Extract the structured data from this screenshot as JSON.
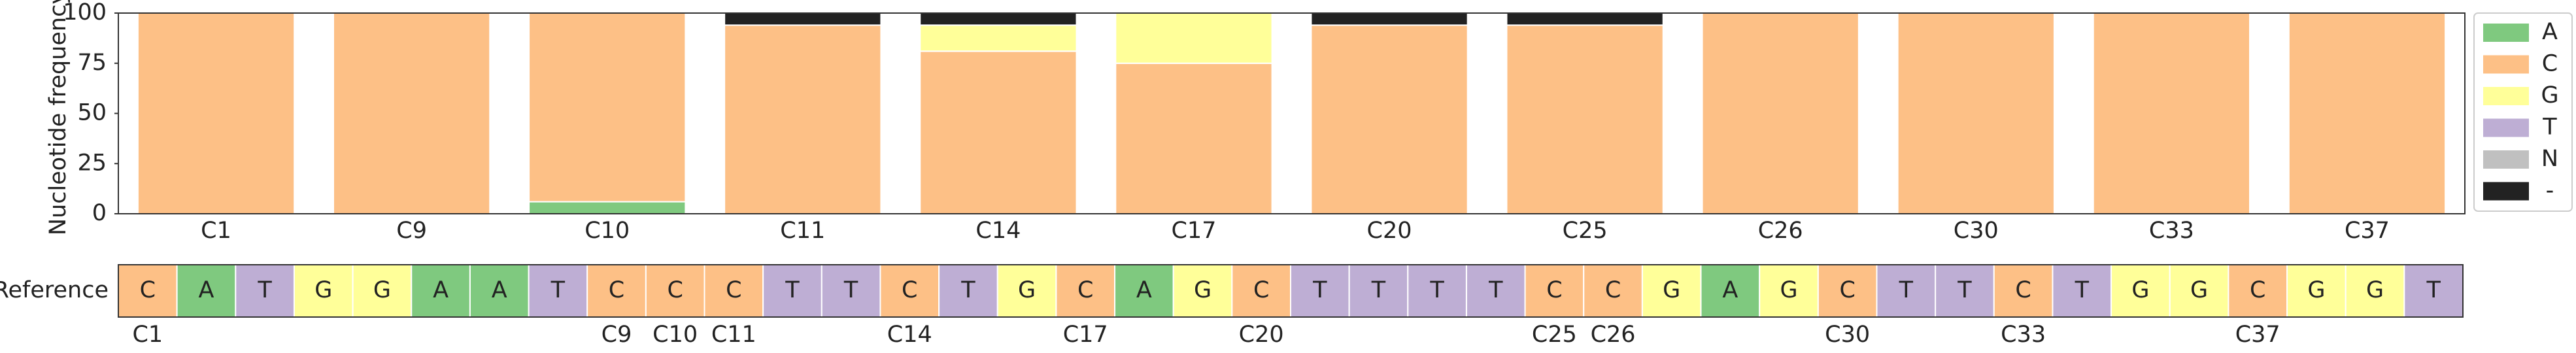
{
  "chart_data": [
    {
      "type": "bar",
      "stacked": true,
      "ylabel": "Nucleotide frequency",
      "categories": [
        "C1",
        "C9",
        "C10",
        "C11",
        "C14",
        "C17",
        "C20",
        "C25",
        "C26",
        "C30",
        "C33",
        "C37"
      ],
      "series": [
        {
          "name": "A",
          "color": "#7fc97f",
          "values": [
            0,
            0,
            6,
            0,
            0,
            0,
            0,
            0,
            0,
            0,
            0,
            0
          ]
        },
        {
          "name": "C",
          "color": "#fdc086",
          "values": [
            100,
            100,
            94,
            94,
            81,
            75,
            94,
            94,
            100,
            100,
            100,
            100
          ]
        },
        {
          "name": "G",
          "color": "#ffff99",
          "values": [
            0,
            0,
            0,
            0,
            13,
            25,
            0,
            0,
            0,
            0,
            0,
            0
          ]
        },
        {
          "name": "T",
          "color": "#beaed4",
          "values": [
            0,
            0,
            0,
            0,
            0,
            0,
            0,
            0,
            0,
            0,
            0,
            0
          ]
        },
        {
          "name": "N",
          "color": "#c0c0c0",
          "values": [
            0,
            0,
            0,
            0,
            0,
            0,
            0,
            0,
            0,
            0,
            0,
            0
          ]
        },
        {
          "name": "-",
          "color": "#222222",
          "values": [
            0,
            0,
            0,
            6,
            6,
            0,
            6,
            6,
            0,
            0,
            0,
            0
          ]
        }
      ],
      "ylim": [
        0,
        100
      ],
      "yticks": [
        0,
        25,
        50,
        75,
        100
      ],
      "legend": "right"
    },
    {
      "type": "sequence",
      "ylabel": "Reference",
      "categories": [
        "C",
        "A",
        "T",
        "G",
        "G",
        "A",
        "A",
        "T",
        "C",
        "C",
        "C",
        "T",
        "T",
        "C",
        "T",
        "G",
        "C",
        "A",
        "G",
        "C",
        "T",
        "T",
        "T",
        "T",
        "C",
        "C",
        "G",
        "A",
        "G",
        "C",
        "T",
        "T",
        "C",
        "T",
        "G",
        "G",
        "C",
        "G",
        "G",
        "T"
      ],
      "labels": [
        "C1",
        null,
        null,
        null,
        null,
        null,
        null,
        null,
        "C9",
        "C10",
        "C11",
        null,
        null,
        "C14",
        null,
        null,
        "C17",
        null,
        null,
        "C20",
        null,
        null,
        null,
        null,
        "C25",
        "C26",
        null,
        null,
        null,
        "C30",
        null,
        null,
        "C33",
        null,
        null,
        null,
        "C37",
        null,
        null,
        null
      ]
    }
  ]
}
